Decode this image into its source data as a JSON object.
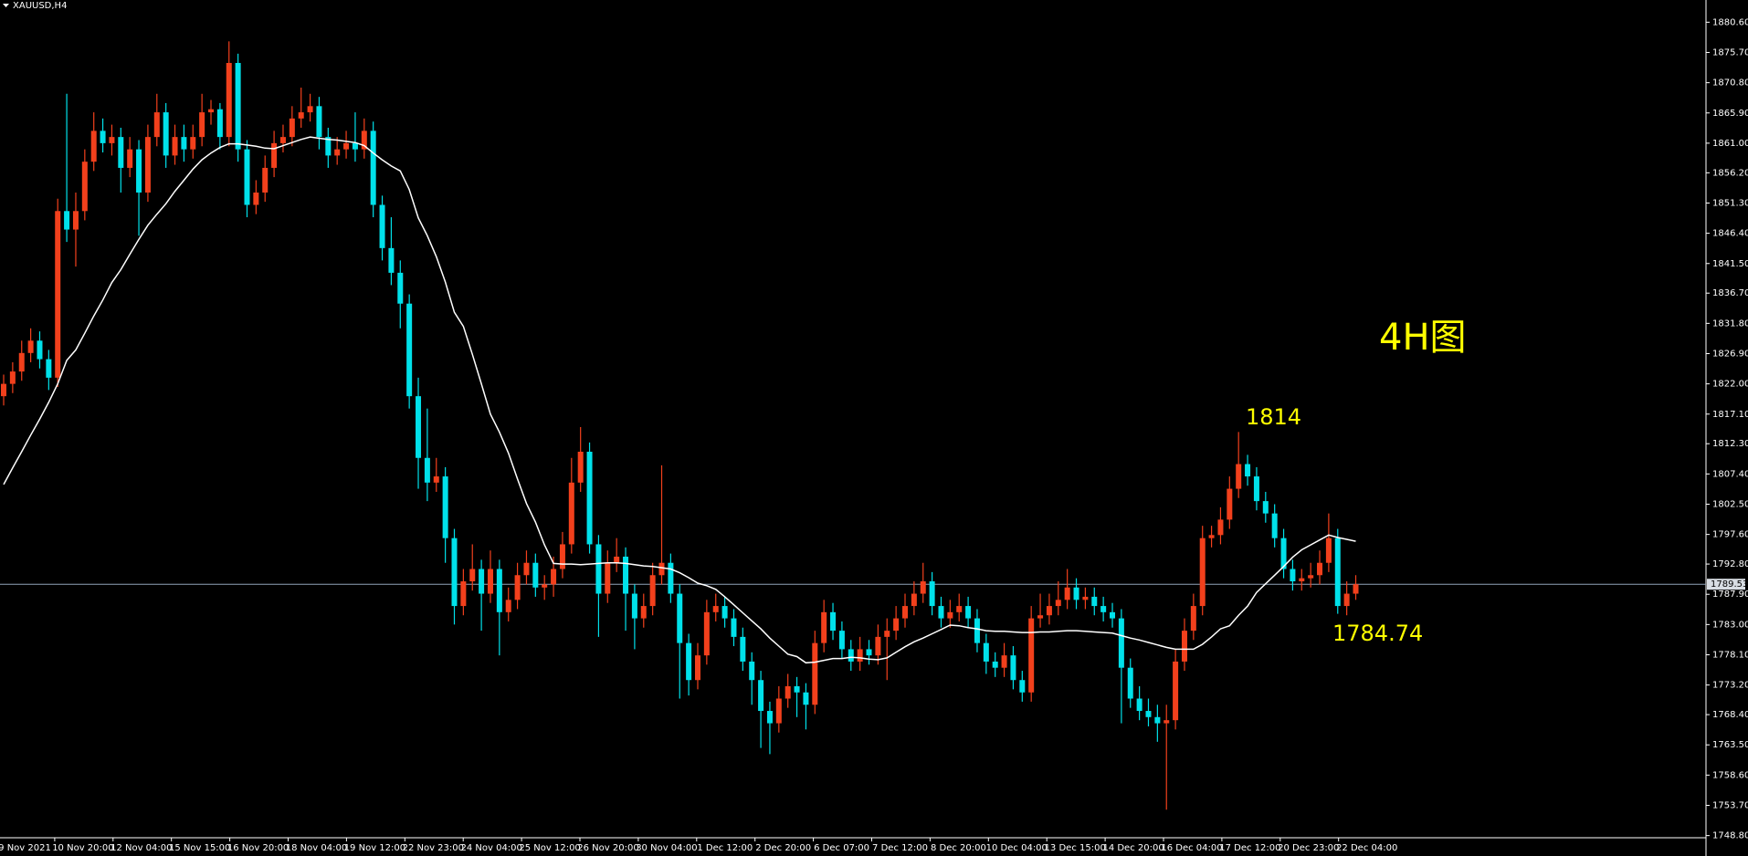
{
  "chart_data": {
    "type": "candlestick",
    "title": "XAUUSD,H4",
    "ohlc": [
      [
        1820,
        1823.5,
        1818.5,
        1822
      ],
      [
        1822,
        1825.5,
        1820.5,
        1824
      ],
      [
        1824,
        1829,
        1822.5,
        1827
      ],
      [
        1827,
        1831,
        1825.5,
        1829
      ],
      [
        1829,
        1830.5,
        1824.5,
        1826
      ],
      [
        1826,
        1827.5,
        1821,
        1823
      ],
      [
        1823,
        1852,
        1821.5,
        1850
      ],
      [
        1850,
        1869,
        1845,
        1847
      ],
      [
        1847,
        1853,
        1841,
        1850
      ],
      [
        1850,
        1860,
        1848.5,
        1858
      ],
      [
        1858,
        1866,
        1856.5,
        1863
      ],
      [
        1863,
        1865,
        1859.5,
        1861
      ],
      [
        1861,
        1864,
        1859,
        1862
      ],
      [
        1862,
        1863.5,
        1853,
        1857
      ],
      [
        1857,
        1862,
        1855.5,
        1860
      ],
      [
        1860,
        1861.5,
        1846,
        1853
      ],
      [
        1853,
        1864,
        1851.5,
        1862
      ],
      [
        1862,
        1869,
        1860.5,
        1866
      ],
      [
        1866,
        1867.5,
        1857,
        1859
      ],
      [
        1859,
        1864,
        1857.5,
        1862
      ],
      [
        1862,
        1864,
        1858,
        1860
      ],
      [
        1860,
        1864,
        1858.5,
        1862
      ],
      [
        1862,
        1869,
        1860.5,
        1866
      ],
      [
        1866,
        1868,
        1864,
        1866.5
      ],
      [
        1866.5,
        1867.5,
        1860,
        1862
      ],
      [
        1862,
        1877.5,
        1860.5,
        1874
      ],
      [
        1874,
        1875.5,
        1858,
        1860
      ],
      [
        1860,
        1861.5,
        1849,
        1851
      ],
      [
        1851,
        1855,
        1849.5,
        1853
      ],
      [
        1853,
        1859,
        1851.5,
        1857
      ],
      [
        1857,
        1863,
        1855.5,
        1861
      ],
      [
        1861,
        1864,
        1859.5,
        1862
      ],
      [
        1862,
        1867,
        1860.5,
        1865
      ],
      [
        1865,
        1870,
        1863.5,
        1866
      ],
      [
        1866,
        1869,
        1864.5,
        1867
      ],
      [
        1867,
        1868.5,
        1860,
        1862
      ],
      [
        1862,
        1863.5,
        1857,
        1859
      ],
      [
        1859,
        1862,
        1857.5,
        1860
      ],
      [
        1860,
        1863,
        1858.5,
        1861
      ],
      [
        1861,
        1866,
        1858,
        1860
      ],
      [
        1860,
        1865,
        1858.5,
        1863
      ],
      [
        1863,
        1864.5,
        1849,
        1851
      ],
      [
        1851,
        1852.5,
        1842,
        1844
      ],
      [
        1844,
        1849,
        1838,
        1840
      ],
      [
        1840,
        1842,
        1831,
        1835
      ],
      [
        1835,
        1836.5,
        1818,
        1820
      ],
      [
        1820,
        1823,
        1805,
        1810
      ],
      [
        1810,
        1818,
        1803,
        1806
      ],
      [
        1806,
        1810,
        1804.5,
        1807
      ],
      [
        1807,
        1808.5,
        1793,
        1797
      ],
      [
        1797,
        1798.5,
        1783,
        1786
      ],
      [
        1786,
        1792,
        1784.5,
        1790
      ],
      [
        1790,
        1796,
        1788.5,
        1792
      ],
      [
        1792,
        1793.5,
        1782,
        1788
      ],
      [
        1788,
        1795,
        1786.5,
        1792
      ],
      [
        1792,
        1793.5,
        1778,
        1785
      ],
      [
        1785,
        1789,
        1783.5,
        1787
      ],
      [
        1787,
        1793,
        1785.5,
        1791
      ],
      [
        1791,
        1795,
        1789.5,
        1793
      ],
      [
        1793,
        1794.5,
        1787.5,
        1789
      ],
      [
        1789,
        1791,
        1787,
        1789.5
      ],
      [
        1789.5,
        1794,
        1787.5,
        1792
      ],
      [
        1792,
        1798,
        1790.5,
        1796
      ],
      [
        1796,
        1810,
        1794.5,
        1806
      ],
      [
        1806,
        1815,
        1804.5,
        1811
      ],
      [
        1811,
        1812.5,
        1794.5,
        1796
      ],
      [
        1796,
        1797.5,
        1781,
        1788
      ],
      [
        1788,
        1795,
        1786.5,
        1793
      ],
      [
        1793,
        1797,
        1791.5,
        1794
      ],
      [
        1794,
        1795.5,
        1782,
        1788
      ],
      [
        1788,
        1789.5,
        1779,
        1784
      ],
      [
        1784,
        1788,
        1782.5,
        1786
      ],
      [
        1786,
        1793,
        1784.5,
        1791
      ],
      [
        1791,
        1808.8,
        1789.5,
        1793
      ],
      [
        1793,
        1794.5,
        1786.5,
        1788
      ],
      [
        1788,
        1789.5,
        1771,
        1780
      ],
      [
        1780,
        1781.5,
        1771.5,
        1774
      ],
      [
        1774,
        1780,
        1772.5,
        1778
      ],
      [
        1778,
        1787,
        1776.5,
        1785
      ],
      [
        1785,
        1788,
        1783.5,
        1786
      ],
      [
        1786,
        1787.5,
        1782.5,
        1784
      ],
      [
        1784,
        1785.5,
        1779.5,
        1781
      ],
      [
        1781,
        1782.5,
        1775.5,
        1777
      ],
      [
        1777,
        1778.5,
        1770,
        1774
      ],
      [
        1774,
        1775.5,
        1763,
        1769
      ],
      [
        1769,
        1770.5,
        1762,
        1767
      ],
      [
        1767,
        1773,
        1765.5,
        1771
      ],
      [
        1771,
        1775,
        1769.5,
        1773
      ],
      [
        1773,
        1774.5,
        1768,
        1772
      ],
      [
        1772,
        1773.5,
        1766,
        1770
      ],
      [
        1770,
        1782,
        1768.5,
        1780
      ],
      [
        1780,
        1787,
        1778.5,
        1785
      ],
      [
        1785,
        1786.5,
        1780.5,
        1782
      ],
      [
        1782,
        1783.5,
        1777.5,
        1779
      ],
      [
        1779,
        1780.5,
        1775.5,
        1777
      ],
      [
        1777,
        1781,
        1775.5,
        1779
      ],
      [
        1779,
        1780.5,
        1776.5,
        1778
      ],
      [
        1778,
        1783,
        1776.5,
        1781
      ],
      [
        1781,
        1784,
        1774,
        1782
      ],
      [
        1782,
        1786,
        1780.5,
        1784
      ],
      [
        1784,
        1788,
        1782.5,
        1786
      ],
      [
        1786,
        1790,
        1784.5,
        1788
      ],
      [
        1788,
        1793,
        1786.5,
        1790
      ],
      [
        1790,
        1791.5,
        1784.5,
        1786
      ],
      [
        1786,
        1787.5,
        1782.5,
        1784
      ],
      [
        1784,
        1787,
        1782.5,
        1785
      ],
      [
        1785,
        1788,
        1783.5,
        1786
      ],
      [
        1786,
        1787.5,
        1782.5,
        1784
      ],
      [
        1784,
        1785.5,
        1778.5,
        1780
      ],
      [
        1780,
        1781.5,
        1775,
        1777
      ],
      [
        1777,
        1778.5,
        1774.5,
        1776
      ],
      [
        1776,
        1780,
        1774.5,
        1778
      ],
      [
        1778,
        1779.5,
        1772.5,
        1774
      ],
      [
        1774,
        1775.5,
        1770.5,
        1772
      ],
      [
        1772,
        1786,
        1770.5,
        1784
      ],
      [
        1784,
        1788,
        1782.5,
        1784.5
      ],
      [
        1784.5,
        1788,
        1783,
        1786
      ],
      [
        1786,
        1790,
        1784.5,
        1787
      ],
      [
        1787,
        1792,
        1785.5,
        1789
      ],
      [
        1789,
        1790.5,
        1785.5,
        1787
      ],
      [
        1787,
        1789,
        1785.5,
        1787.5
      ],
      [
        1787.5,
        1789,
        1784.5,
        1786
      ],
      [
        1786,
        1787.5,
        1783.5,
        1785
      ],
      [
        1785,
        1786.5,
        1782.5,
        1784
      ],
      [
        1784,
        1785.5,
        1767,
        1776
      ],
      [
        1776,
        1777.5,
        1769.5,
        1771
      ],
      [
        1771,
        1773,
        1767.5,
        1769
      ],
      [
        1769,
        1771,
        1766.5,
        1768
      ],
      [
        1768,
        1770,
        1764,
        1767
      ],
      [
        1767,
        1770,
        1753,
        1767.5
      ],
      [
        1767.5,
        1779,
        1766,
        1777
      ],
      [
        1777,
        1784,
        1775.5,
        1782
      ],
      [
        1782,
        1788,
        1780.5,
        1786
      ],
      [
        1786,
        1799,
        1784.5,
        1797
      ],
      [
        1797,
        1799,
        1795.5,
        1797.5
      ],
      [
        1797.5,
        1802,
        1796,
        1800
      ],
      [
        1800,
        1807,
        1798.5,
        1805
      ],
      [
        1805,
        1814.2,
        1803.5,
        1809
      ],
      [
        1809,
        1810.5,
        1805.5,
        1807
      ],
      [
        1807,
        1808.5,
        1801.5,
        1803
      ],
      [
        1803,
        1804.5,
        1799.5,
        1801
      ],
      [
        1801,
        1802.5,
        1795.5,
        1797
      ],
      [
        1797,
        1798.5,
        1790.5,
        1792
      ],
      [
        1792,
        1793.5,
        1788.5,
        1790
      ],
      [
        1790,
        1792,
        1788.5,
        1790.5
      ],
      [
        1790.5,
        1793,
        1789,
        1791
      ],
      [
        1791,
        1795,
        1789.5,
        1793
      ],
      [
        1793,
        1801,
        1791.5,
        1797
      ],
      [
        1797,
        1798.5,
        1784.74,
        1786
      ],
      [
        1786,
        1790,
        1784.5,
        1788
      ],
      [
        1788,
        1791,
        1787,
        1789.53
      ]
    ],
    "up_color": "#f2401c",
    "down_color": "#00e1ea",
    "ma": {
      "color": "#ffffff",
      "values": [
        1805.7,
        1808.4,
        1811,
        1813.7,
        1816.3,
        1819,
        1822,
        1825.8,
        1827.5,
        1830.2,
        1833,
        1835.6,
        1838.4,
        1840.5,
        1843,
        1845.4,
        1847.7,
        1849.5,
        1851.2,
        1853.2,
        1855,
        1856.8,
        1858.3,
        1859.4,
        1860.3,
        1860.9,
        1860.9,
        1860.7,
        1860.5,
        1860.2,
        1860.1,
        1860.6,
        1861.1,
        1861.6,
        1862,
        1861.8,
        1861.6,
        1861.5,
        1861.3,
        1861.1,
        1860.6,
        1859.4,
        1858.3,
        1857.3,
        1856.5,
        1853.5,
        1848.9,
        1846,
        1842.6,
        1838.5,
        1833.6,
        1831.3,
        1826.8,
        1822,
        1817.1,
        1814.2,
        1810.8,
        1806.6,
        1802.6,
        1799.6,
        1795.9,
        1792.9,
        1792.8,
        1792.8,
        1792.7,
        1792.8,
        1792.9,
        1793,
        1793,
        1792.9,
        1792.7,
        1792.5,
        1792.4,
        1792.2,
        1792,
        1791.4,
        1790.6,
        1789.7,
        1789.3,
        1788.7,
        1787.5,
        1786.2,
        1784.9,
        1783.6,
        1782.3,
        1780.8,
        1779.5,
        1778.2,
        1777.8,
        1776.8,
        1776.9,
        1777.2,
        1777.5,
        1777.5,
        1777.7,
        1777.6,
        1777.4,
        1777.3,
        1777.6,
        1778.5,
        1779.4,
        1780.2,
        1780.8,
        1781.5,
        1782.2,
        1782.9,
        1782.8,
        1782.5,
        1782.3,
        1782,
        1781.9,
        1781.9,
        1781.8,
        1781.7,
        1781.7,
        1781.8,
        1781.8,
        1781.9,
        1782,
        1782,
        1781.9,
        1781.8,
        1781.7,
        1781.6,
        1781.2,
        1780.8,
        1780.5,
        1780.1,
        1779.7,
        1779.3,
        1779,
        1779,
        1779,
        1779.8,
        1781,
        1782.3,
        1782.8,
        1784.5,
        1786,
        1788.2,
        1789.6,
        1791,
        1792.4,
        1793.9,
        1795.1,
        1795.9,
        1796.7,
        1797.5,
        1797.1,
        1796.8,
        1796.5
      ]
    },
    "ylim": [
      1748.45,
      1884.2
    ],
    "yticks": [
      {
        "value": 1880.6,
        "label": "1880.60"
      },
      {
        "value": 1875.7,
        "label": "1875.70"
      },
      {
        "value": 1870.8,
        "label": "1870.80"
      },
      {
        "value": 1865.9,
        "label": "1865.90"
      },
      {
        "value": 1861,
        "label": "1861.00"
      },
      {
        "value": 1856.2,
        "label": "1856.20"
      },
      {
        "value": 1851.3,
        "label": "1851.30"
      },
      {
        "value": 1846.4,
        "label": "1846.40"
      },
      {
        "value": 1841.5,
        "label": "1841.50"
      },
      {
        "value": 1836.7,
        "label": "1836.70"
      },
      {
        "value": 1831.8,
        "label": "1831.80"
      },
      {
        "value": 1826.9,
        "label": "1826.90"
      },
      {
        "value": 1822,
        "label": "1822.00"
      },
      {
        "value": 1817.1,
        "label": "1817.10"
      },
      {
        "value": 1812.3,
        "label": "1812.30"
      },
      {
        "value": 1807.4,
        "label": "1807.40"
      },
      {
        "value": 1802.5,
        "label": "1802.50"
      },
      {
        "value": 1797.6,
        "label": "1797.60"
      },
      {
        "value": 1792.8,
        "label": "1792.80"
      },
      {
        "value": 1787.9,
        "label": "1787.90"
      },
      {
        "value": 1783,
        "label": "1783.00"
      },
      {
        "value": 1778.1,
        "label": "1778.10"
      },
      {
        "value": 1773.2,
        "label": "1773.20"
      },
      {
        "value": 1768.4,
        "label": "1768.40"
      },
      {
        "value": 1763.5,
        "label": "1763.50"
      },
      {
        "value": 1758.6,
        "label": "1758.60"
      },
      {
        "value": 1753.7,
        "label": "1753.70"
      },
      {
        "value": 1748.8,
        "label": "1748.80"
      }
    ],
    "x_labels": [
      "9 Nov 2021",
      "10 Nov 20:00",
      "12 Nov 04:00",
      "15 Nov 15:00",
      "16 Nov 20:00",
      "18 Nov 04:00",
      "19 Nov 12:00",
      "22 Nov 23:00",
      "24 Nov 04:00",
      "25 Nov 12:00",
      "26 Nov 20:00",
      "30 Nov 04:00",
      "1 Dec 12:00",
      "2 Dec 20:00",
      "6 Dec 07:00",
      "7 Dec 12:00",
      "8 Dec 20:00",
      "10 Dec 04:00",
      "13 Dec 15:00",
      "14 Dec 20:00",
      "16 Dec 04:00",
      "17 Dec 12:00",
      "20 Dec 23:00",
      "22 Dec 04:00"
    ],
    "current_price": 1789.53,
    "annotations": [
      "4H图",
      "1814",
      "1784.74"
    ]
  }
}
